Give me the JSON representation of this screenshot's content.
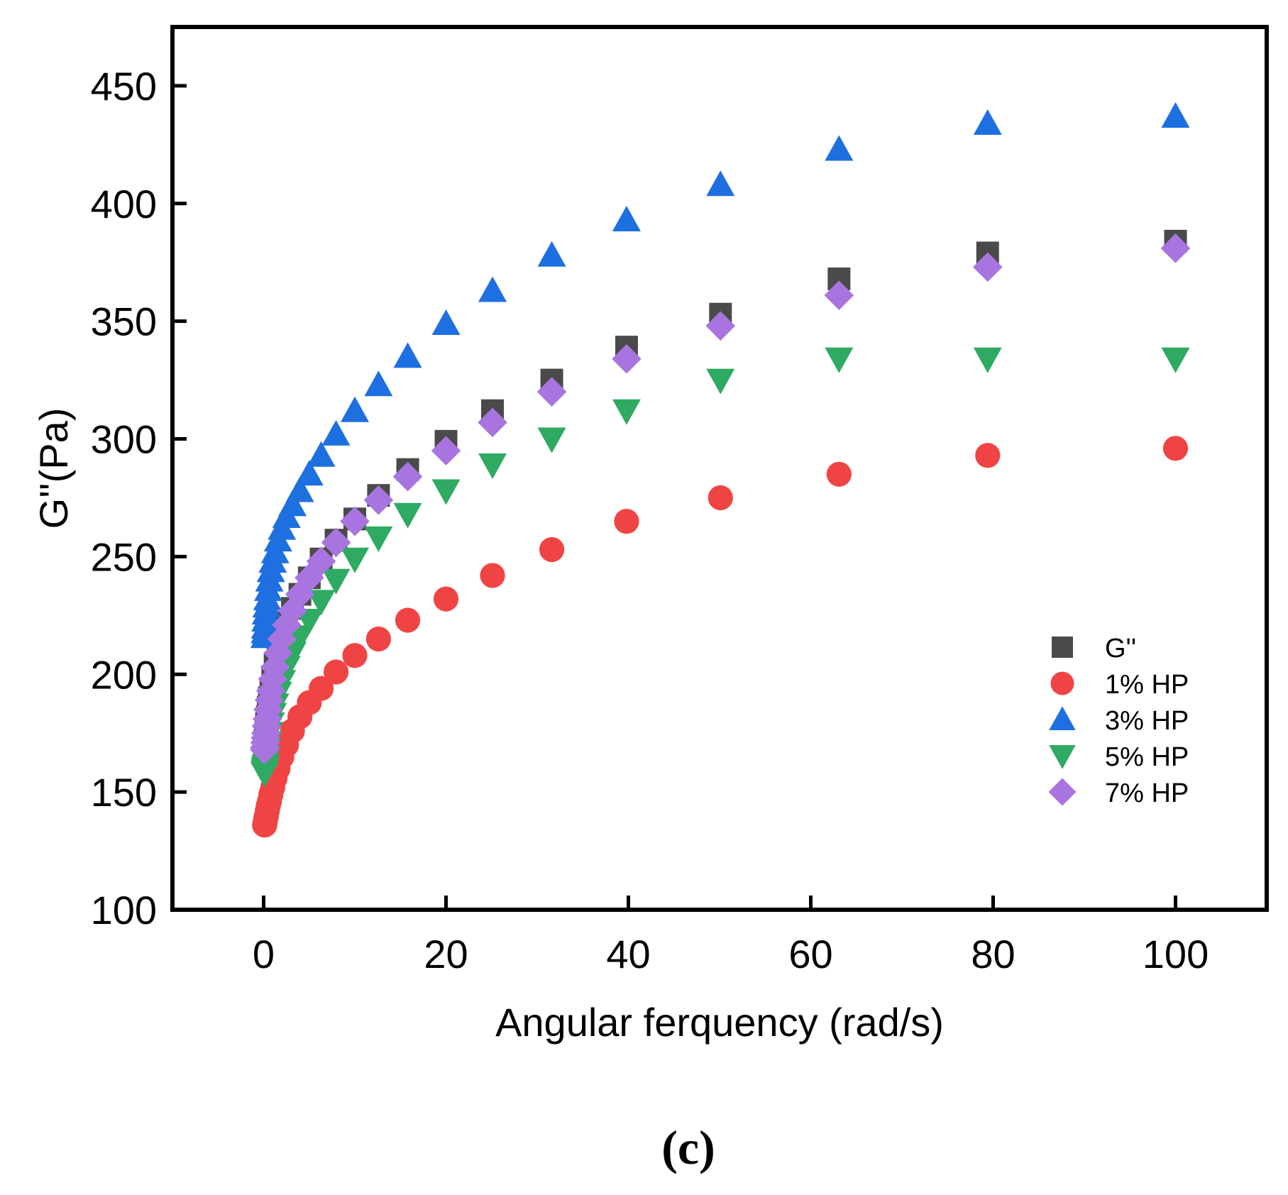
{
  "chart_data": {
    "type": "scatter",
    "title": "",
    "xlabel": "Angular ferquency (rad/s)",
    "ylabel": "G''(Pa)",
    "xlim": [
      -10,
      110
    ],
    "ylim": [
      100,
      475
    ],
    "xticks": [
      0,
      20,
      40,
      60,
      80,
      100
    ],
    "yticks": [
      100,
      150,
      200,
      250,
      300,
      350,
      400,
      450
    ],
    "xtick_labels": [
      "0",
      "20",
      "40",
      "60",
      "80",
      "100"
    ],
    "ytick_labels": [
      "100",
      "150",
      "200",
      "250",
      "300",
      "350",
      "400",
      "450"
    ],
    "legend_position": "bottom-right",
    "panel_label": "(c)",
    "x": [
      0.1,
      0.126,
      0.158,
      0.2,
      0.251,
      0.316,
      0.398,
      0.501,
      0.631,
      0.794,
      1.0,
      1.26,
      1.58,
      2.0,
      2.51,
      3.16,
      3.98,
      5.01,
      6.31,
      7.94,
      10.0,
      12.6,
      15.8,
      20.0,
      25.1,
      31.6,
      39.8,
      50.1,
      63.1,
      79.4,
      100.0
    ],
    "series": [
      {
        "name": "G''",
        "marker": "square",
        "color": "#4a4a4a",
        "values": [
          170,
          171,
          172,
          174,
          176,
          179,
          182,
          186,
          190,
          194,
          199,
          204,
          210,
          216,
          222,
          228,
          234,
          241,
          249,
          257,
          266,
          276,
          287,
          299,
          312,
          325,
          339,
          353,
          368,
          379,
          384
        ]
      },
      {
        "name": "1% HP",
        "marker": "circle",
        "color": "#f04444",
        "values": [
          136,
          136,
          137,
          138,
          139,
          140,
          142,
          144,
          146,
          149,
          152,
          156,
          160,
          165,
          170,
          176,
          182,
          188,
          194,
          201,
          208,
          215,
          223,
          232,
          242,
          253,
          265,
          275,
          285,
          293,
          296
        ]
      },
      {
        "name": "3% HP",
        "marker": "triangle-up",
        "color": "#1e6fe0",
        "values": [
          216,
          218,
          220,
          223,
          226,
          229,
          232,
          236,
          240,
          244,
          248,
          252,
          257,
          262,
          267,
          272,
          278,
          285,
          293,
          302,
          312,
          323,
          335,
          349,
          363,
          378,
          393,
          408,
          423,
          434,
          437
        ]
      },
      {
        "name": "5% HP",
        "marker": "triangle-down",
        "color": "#2eaa62",
        "values": [
          158,
          159,
          160,
          161,
          163,
          165,
          168,
          171,
          175,
          179,
          183,
          187,
          192,
          197,
          203,
          209,
          216,
          223,
          231,
          240,
          249,
          258,
          268,
          278,
          289,
          300,
          312,
          325,
          334,
          334,
          334
        ]
      },
      {
        "name": "7% HP",
        "marker": "diamond",
        "color": "#a874e0",
        "values": [
          168,
          169,
          171,
          173,
          175,
          178,
          181,
          185,
          189,
          193,
          198,
          203,
          209,
          215,
          221,
          227,
          234,
          241,
          248,
          256,
          265,
          274,
          284,
          295,
          307,
          320,
          334,
          348,
          361,
          373,
          381
        ]
      }
    ],
    "legend": [
      "G''",
      "1% HP",
      "3% HP",
      "5% HP",
      "7% HP"
    ]
  }
}
